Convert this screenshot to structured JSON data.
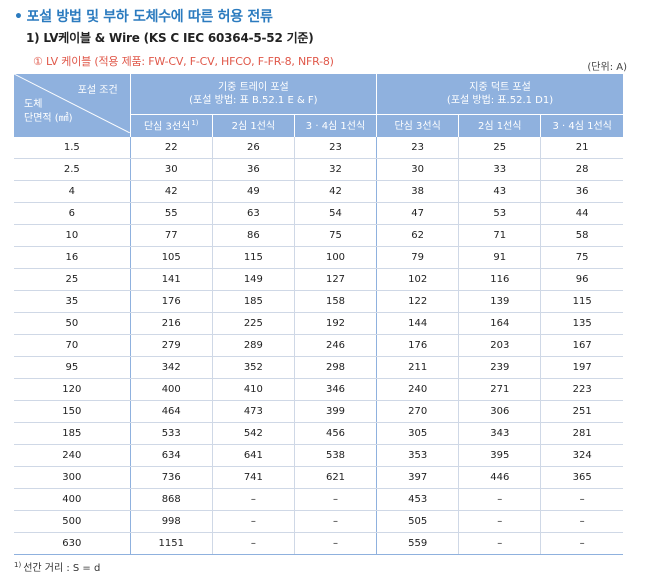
{
  "heading": {
    "bullet": "•",
    "title": "포설 방법 및 부하 도체수에 따른 허용 전류"
  },
  "subheading": "1) LV케이블 & Wire (KS C IEC 60364-5-52 기준)",
  "note": "① LV 케이블 (적용 제품: FW-CV, F-CV, HFCO, F-FR-8, NFR-8)",
  "unit": "(단위: A)",
  "table": {
    "corner_top": "포설 조건",
    "corner_bottom_line1": "도체",
    "corner_bottom_line2": "단면적 (㎟)",
    "group1_line1": "기중 트레이 포설",
    "group1_line2": "(포설 방법: 표 B.52.1 E & F)",
    "group2_line1": "지중 덕트 포설",
    "group2_line2": "(포설 방법: 표.52.1 D1)",
    "sub_headers": [
      "단심 3선식",
      "2심 1선식",
      "3 · 4심 1선식",
      "단심 3선식",
      "2심 1선식",
      "3 · 4심 1선식"
    ],
    "sub_header_sup": "1)",
    "rows": [
      [
        "1.5",
        "22",
        "26",
        "23",
        "23",
        "25",
        "21"
      ],
      [
        "2.5",
        "30",
        "36",
        "32",
        "30",
        "33",
        "28"
      ],
      [
        "4",
        "42",
        "49",
        "42",
        "38",
        "43",
        "36"
      ],
      [
        "6",
        "55",
        "63",
        "54",
        "47",
        "53",
        "44"
      ],
      [
        "10",
        "77",
        "86",
        "75",
        "62",
        "71",
        "58"
      ],
      [
        "16",
        "105",
        "115",
        "100",
        "79",
        "91",
        "75"
      ],
      [
        "25",
        "141",
        "149",
        "127",
        "102",
        "116",
        "96"
      ],
      [
        "35",
        "176",
        "185",
        "158",
        "122",
        "139",
        "115"
      ],
      [
        "50",
        "216",
        "225",
        "192",
        "144",
        "164",
        "135"
      ],
      [
        "70",
        "279",
        "289",
        "246",
        "176",
        "203",
        "167"
      ],
      [
        "95",
        "342",
        "352",
        "298",
        "211",
        "239",
        "197"
      ],
      [
        "120",
        "400",
        "410",
        "346",
        "240",
        "271",
        "223"
      ],
      [
        "150",
        "464",
        "473",
        "399",
        "270",
        "306",
        "251"
      ],
      [
        "185",
        "533",
        "542",
        "456",
        "305",
        "343",
        "281"
      ],
      [
        "240",
        "634",
        "641",
        "538",
        "353",
        "395",
        "324"
      ],
      [
        "300",
        "736",
        "741",
        "621",
        "397",
        "446",
        "365"
      ],
      [
        "400",
        "868",
        "–",
        "–",
        "453",
        "–",
        "–"
      ],
      [
        "500",
        "998",
        "–",
        "–",
        "505",
        "–",
        "–"
      ],
      [
        "630",
        "1151",
        "–",
        "–",
        "559",
        "–",
        "–"
      ]
    ]
  },
  "footnote": {
    "marker": "1)",
    "text": "선간 거리 : S = d"
  },
  "colors": {
    "heading": "#2b7bbf",
    "header_bg": "#8fb1de",
    "note": "#e0584a"
  }
}
